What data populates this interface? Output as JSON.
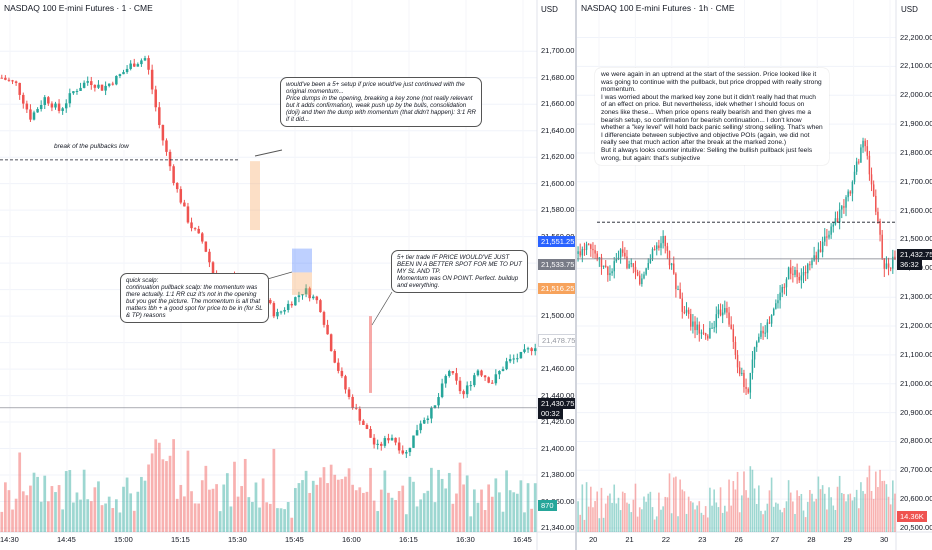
{
  "left": {
    "title": "NASDAQ 100 E-mini Futures · 1 · CME",
    "currency": "USD",
    "y_ticks": [
      "21,700.00",
      "21,680.00",
      "21,660.00",
      "21,640.00",
      "21,620.00",
      "21,600.00",
      "21,580.00",
      "21,560.00",
      "21,540.00",
      "21,520.00",
      "21,500.00",
      "21,480.00",
      "21,460.00",
      "21,440.00",
      "21,420.00",
      "21,400.00",
      "21,380.00",
      "21,360.00",
      "21,340.00"
    ],
    "x_ticks": [
      "14:30",
      "14:45",
      "15:00",
      "15:15",
      "15:30",
      "15:45",
      "16:00",
      "16:15",
      "16:30",
      "16:45"
    ],
    "price_tags": {
      "blue": "21,551.25",
      "gray": "21,533.75",
      "orange": "21,516.25",
      "faded": "21,478.75",
      "current": "21,430.75",
      "timer": "00:32",
      "volume": "870"
    },
    "pullback_label": "break of the pullbacks low",
    "note_top": "would've been a 5+ setup if price would've just continued with the original momentum...\nPrice dumps in the opening, breaking a key zone (not really relevant but it adds confirmation), weak push up by the bulls, consolidation (doji) and then the dump with momentum (that didn't happen): 3:1 RR if it did...",
    "note_scalp": "quick scalp:\ncontinuation pullback scalp: the momentum was there actually. 1:1 RR cuz it's not in the opening but you get the picture. The momentum is all that matters tbh + a good spot for price to be in (for SL & TP) reasons",
    "note_tier": "5+ tier trade IF PRICE WOULD'VE JUST BEEN IN A BETTER SPOT FOR ME TO PUT MY SL AND TP.\nMomentum was ON POINT. Perfect. buildup and everything."
  },
  "right": {
    "title": "NASDAQ 100 E-mini Futures · 1h · CME",
    "currency": "USD",
    "y_ticks": [
      "22,200.00",
      "22,100.00",
      "22,000.00",
      "21,900.00",
      "21,800.00",
      "21,700.00",
      "21,600.00",
      "21,500.00",
      "21,400.00",
      "21,300.00",
      "21,200.00",
      "21,100.00",
      "21,000.00",
      "20,900.00",
      "20,800.00",
      "20,700.00",
      "20,600.00",
      "20,500.00"
    ],
    "x_ticks": [
      "20",
      "21",
      "22",
      "23",
      "26",
      "27",
      "28",
      "29",
      "30"
    ],
    "price_tags": {
      "current": "21,432.75",
      "timer": "36:32",
      "volume": "14.36K"
    },
    "note": "we were again in an uptrend at the start of the session. Price looked like it was going to continue with the pullback, but price dropped with really strong momentum.\nI was worried about the marked key zone but it didn't really had that much of an effect on price. But nevertheless, idek whether I should focus on zones like these... When price opens really bearish and then gives me a bearish setup, so confirmation for bearish continuation... I don't know whether a \"key level\" will hold back panic selling/ strong selling. That's when I differenciate between subjective and objective POIs (again, we did not really see that much action after the break at the marked zone.)\nBut it always looks counter intuitive: Selling the bullish pullback just feels wrong, but again: that's subjective"
  },
  "colors": {
    "up": "#26a69a",
    "down": "#ef5350",
    "text": "#131722",
    "grid": "#f0f3fa",
    "blue_tag": "#2962ff",
    "orange_tag": "#f7a35c",
    "gray_tag": "#787b86",
    "dark_tag": "#131722"
  },
  "chart_data": [
    {
      "type": "candlestick",
      "title": "NASDAQ 100 E-mini Futures · 1 · CME",
      "ylim": [
        21340,
        21710
      ],
      "x": [
        "14:30",
        "14:45",
        "15:00",
        "15:15",
        "15:30",
        "15:45",
        "16:00",
        "16:15",
        "16:30",
        "16:45"
      ],
      "close_path": [
        21680,
        21675,
        21650,
        21665,
        21655,
        21670,
        21678,
        21672,
        21680,
        21690,
        21695,
        21640,
        21600,
        21570,
        21555,
        21520,
        21530,
        21505,
        21520,
        21500,
        21510,
        21520,
        21510,
        21470,
        21440,
        21420,
        21400,
        21410,
        21395,
        21420,
        21430,
        21460,
        21440,
        21460,
        21450,
        21465,
        21470,
        21478
      ],
      "volume_peak": "870"
    },
    {
      "type": "candlestick",
      "title": "NASDAQ 100 E-mini Futures · 1h · CME",
      "ylim": [
        20500,
        22240
      ],
      "x": [
        "20",
        "21",
        "22",
        "23",
        "26",
        "27",
        "28",
        "29",
        "30"
      ],
      "close_path": [
        21450,
        21500,
        21420,
        21380,
        21450,
        21400,
        21350,
        21460,
        21500,
        21380,
        21250,
        21200,
        21150,
        21220,
        21280,
        21080,
        20960,
        21180,
        21200,
        21300,
        21400,
        21360,
        21420,
        21460,
        21550,
        21600,
        21700,
        21850,
        21650,
        21400,
        21432
      ],
      "volume_peak": "14.36K"
    }
  ]
}
